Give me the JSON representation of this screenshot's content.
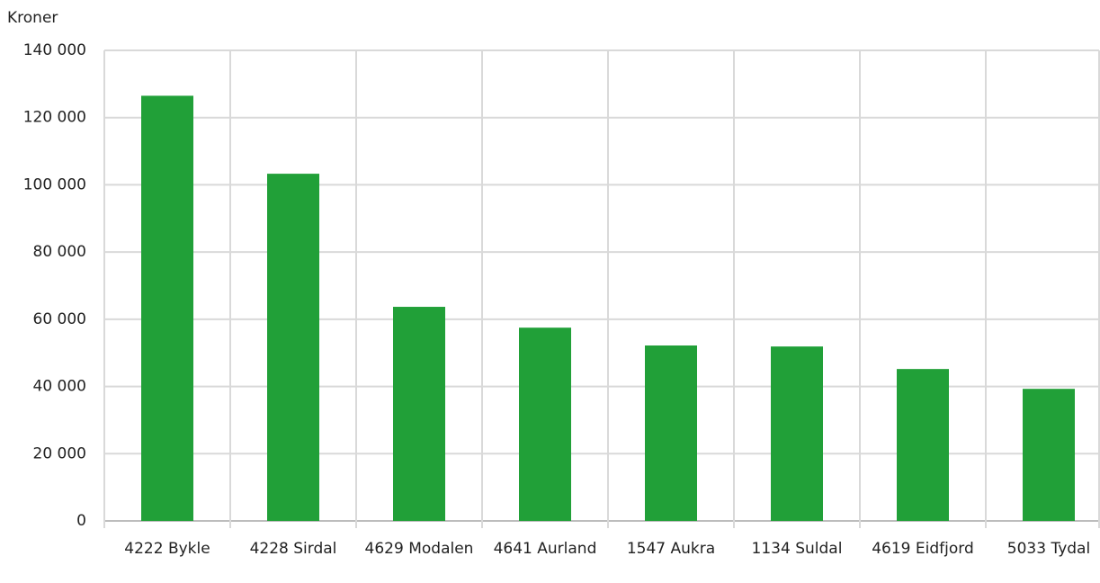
{
  "chart_data": {
    "type": "bar",
    "y_label": "Kroner",
    "categories": [
      "4222 Bykle",
      "4228 Sirdal",
      "4629 Modalen",
      "4641 Aurland",
      "1547 Aukra",
      "1134 Suldal",
      "4619 Eidfjord",
      "5033 Tydal"
    ],
    "values": [
      126500,
      103300,
      63700,
      57500,
      52200,
      51900,
      45200,
      39300
    ],
    "color": "#21a038",
    "ylim": [
      0,
      140000
    ],
    "yticks": [
      0,
      {
        "value": 20000,
        "label": "20 000"
      },
      {
        "value": 40000,
        "label": "40 000"
      },
      {
        "value": 60000,
        "label": "60 000"
      },
      {
        "value": 80000,
        "label": "80 000"
      },
      {
        "value": 100000,
        "label": "100 000"
      },
      {
        "value": 120000,
        "label": "120 000"
      },
      {
        "value": 140000,
        "label": "140 000"
      }
    ],
    "grid": true
  }
}
